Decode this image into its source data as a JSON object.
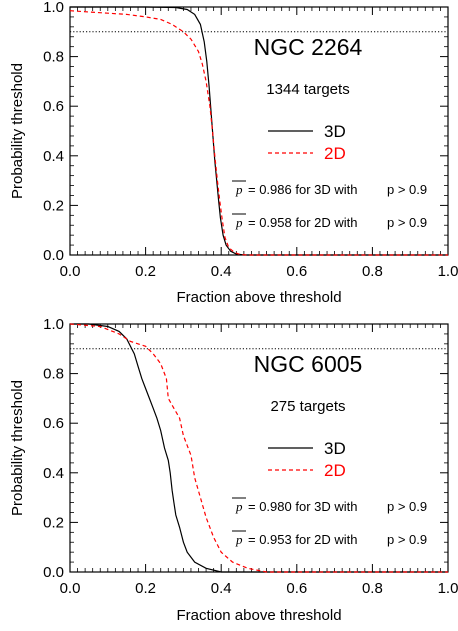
{
  "chart_data": [
    {
      "type": "line",
      "title": "NGC 2264",
      "subtitle": "1344 targets",
      "xlabel": "Fraction above threshold",
      "ylabel": "Probability threshold",
      "xlim": [
        0,
        1
      ],
      "ylim": [
        0,
        1
      ],
      "x_ticks": [
        "0.0",
        "0.2",
        "0.4",
        "0.6",
        "0.8",
        "1.0"
      ],
      "y_ticks": [
        "0.0",
        "0.2",
        "0.4",
        "0.6",
        "0.8",
        "1.0"
      ],
      "reference_line": {
        "y": 0.9,
        "style": "dotted"
      },
      "series": [
        {
          "name": "3D",
          "color": "#000000",
          "style": "solid",
          "points": [
            [
              0.0,
              1.0
            ],
            [
              0.2,
              1.0
            ],
            [
              0.28,
              0.998
            ],
            [
              0.31,
              0.99
            ],
            [
              0.33,
              0.97
            ],
            [
              0.345,
              0.93
            ],
            [
              0.355,
              0.86
            ],
            [
              0.362,
              0.78
            ],
            [
              0.368,
              0.68
            ],
            [
              0.373,
              0.58
            ],
            [
              0.378,
              0.48
            ],
            [
              0.383,
              0.38
            ],
            [
              0.388,
              0.3
            ],
            [
              0.393,
              0.22
            ],
            [
              0.398,
              0.15
            ],
            [
              0.405,
              0.08
            ],
            [
              0.413,
              0.04
            ],
            [
              0.425,
              0.015
            ],
            [
              0.44,
              0.004
            ],
            [
              0.46,
              0.0
            ],
            [
              1.0,
              0.0
            ]
          ]
        },
        {
          "name": "2D",
          "color": "#ff0000",
          "style": "dashed",
          "points": [
            [
              0.0,
              0.985
            ],
            [
              0.05,
              0.98
            ],
            [
              0.1,
              0.975
            ],
            [
              0.15,
              0.97
            ],
            [
              0.2,
              0.96
            ],
            [
              0.24,
              0.95
            ],
            [
              0.27,
              0.93
            ],
            [
              0.3,
              0.9
            ],
            [
              0.32,
              0.87
            ],
            [
              0.34,
              0.82
            ],
            [
              0.35,
              0.77
            ],
            [
              0.36,
              0.7
            ],
            [
              0.37,
              0.6
            ],
            [
              0.377,
              0.5
            ],
            [
              0.383,
              0.4
            ],
            [
              0.39,
              0.3
            ],
            [
              0.396,
              0.22
            ],
            [
              0.403,
              0.14
            ],
            [
              0.41,
              0.07
            ],
            [
              0.42,
              0.03
            ],
            [
              0.435,
              0.01
            ],
            [
              0.45,
              0.002
            ],
            [
              0.47,
              0.0
            ],
            [
              1.0,
              0.0
            ]
          ]
        }
      ],
      "legend": {
        "placement": "center-right",
        "items": [
          "3D",
          "2D"
        ]
      },
      "annotations": [
        {
          "text": " = 0.986 for 3D with ",
          "pbar": "p",
          "tail": "p > 0.9"
        },
        {
          "text": " = 0.958 for 2D with ",
          "pbar": "p",
          "tail": "p > 0.9"
        }
      ]
    },
    {
      "type": "line",
      "title": "NGC 6005",
      "subtitle": "275 targets",
      "xlabel": "Fraction above threshold",
      "ylabel": "Probability threshold",
      "xlim": [
        0,
        1
      ],
      "ylim": [
        0,
        1
      ],
      "x_ticks": [
        "0.0",
        "0.2",
        "0.4",
        "0.6",
        "0.8",
        "1.0"
      ],
      "y_ticks": [
        "0.0",
        "0.2",
        "0.4",
        "0.6",
        "0.8",
        "1.0"
      ],
      "reference_line": {
        "y": 0.9,
        "style": "dotted"
      },
      "series": [
        {
          "name": "3D",
          "color": "#000000",
          "style": "solid",
          "points": [
            [
              0.0,
              1.0
            ],
            [
              0.05,
              1.0
            ],
            [
              0.1,
              0.99
            ],
            [
              0.13,
              0.97
            ],
            [
              0.15,
              0.94
            ],
            [
              0.17,
              0.88
            ],
            [
              0.18,
              0.83
            ],
            [
              0.19,
              0.78
            ],
            [
              0.2,
              0.74
            ],
            [
              0.21,
              0.7
            ],
            [
              0.22,
              0.66
            ],
            [
              0.23,
              0.62
            ],
            [
              0.24,
              0.57
            ],
            [
              0.25,
              0.5
            ],
            [
              0.26,
              0.45
            ],
            [
              0.265,
              0.4
            ],
            [
              0.27,
              0.33
            ],
            [
              0.275,
              0.28
            ],
            [
              0.28,
              0.23
            ],
            [
              0.29,
              0.18
            ],
            [
              0.3,
              0.12
            ],
            [
              0.31,
              0.08
            ],
            [
              0.33,
              0.04
            ],
            [
              0.36,
              0.015
            ],
            [
              0.4,
              0.0
            ],
            [
              1.0,
              0.0
            ]
          ]
        },
        {
          "name": "2D",
          "color": "#ff0000",
          "style": "dashed",
          "points": [
            [
              0.0,
              1.0
            ],
            [
              0.08,
              0.99
            ],
            [
              0.13,
              0.96
            ],
            [
              0.16,
              0.93
            ],
            [
              0.2,
              0.91
            ],
            [
              0.22,
              0.88
            ],
            [
              0.24,
              0.84
            ],
            [
              0.255,
              0.78
            ],
            [
              0.26,
              0.7
            ],
            [
              0.275,
              0.66
            ],
            [
              0.29,
              0.62
            ],
            [
              0.3,
              0.55
            ],
            [
              0.32,
              0.47
            ],
            [
              0.33,
              0.38
            ],
            [
              0.345,
              0.3
            ],
            [
              0.36,
              0.22
            ],
            [
              0.38,
              0.14
            ],
            [
              0.4,
              0.08
            ],
            [
              0.43,
              0.04
            ],
            [
              0.47,
              0.015
            ],
            [
              0.52,
              0.0
            ],
            [
              1.0,
              0.0
            ]
          ]
        }
      ],
      "legend": {
        "placement": "center-right",
        "items": [
          "3D",
          "2D"
        ]
      },
      "annotations": [
        {
          "text": " = 0.980 for 3D with ",
          "pbar": "p",
          "tail": "p > 0.9"
        },
        {
          "text": " = 0.953 for 2D with ",
          "pbar": "p",
          "tail": "p > 0.9"
        }
      ]
    }
  ]
}
